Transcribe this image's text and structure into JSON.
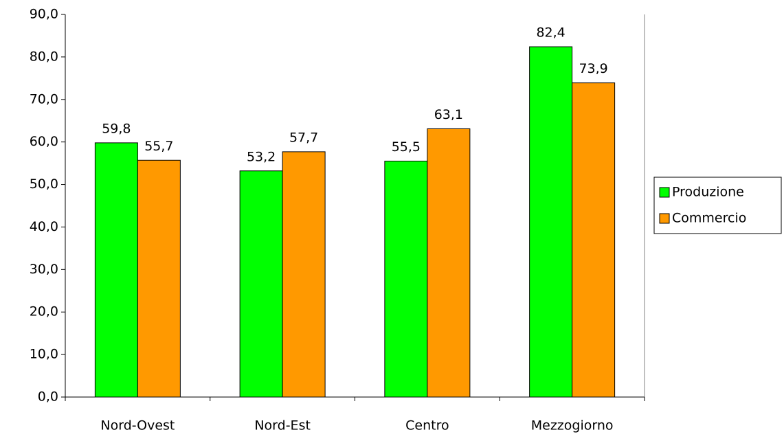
{
  "chart_data": {
    "type": "bar",
    "categories": [
      "Nord-Ovest",
      "Nord-Est",
      "Centro",
      "Mezzogiorno"
    ],
    "series": [
      {
        "name": "Produzione",
        "color": "#00ff00",
        "values": [
          59.8,
          53.2,
          55.5,
          82.4
        ],
        "value_labels": [
          "59,8",
          "53,2",
          "55,5",
          "82,4"
        ]
      },
      {
        "name": "Commercio",
        "color": "#ff9900",
        "values": [
          55.7,
          57.7,
          63.1,
          73.9
        ],
        "value_labels": [
          "55,7",
          "57,7",
          "63,1",
          "73,9"
        ]
      }
    ],
    "ylim": [
      0,
      90
    ],
    "yticks": [
      {
        "value": 0,
        "label": "0,0"
      },
      {
        "value": 10,
        "label": "10,0"
      },
      {
        "value": 20,
        "label": "20,0"
      },
      {
        "value": 30,
        "label": "30,0"
      },
      {
        "value": 40,
        "label": "40,0"
      },
      {
        "value": 50,
        "label": "50,0"
      },
      {
        "value": 60,
        "label": "60,0"
      },
      {
        "value": 70,
        "label": "70,0"
      },
      {
        "value": 80,
        "label": "80,0"
      },
      {
        "value": 90,
        "label": "90,0"
      }
    ],
    "legend": "right"
  }
}
